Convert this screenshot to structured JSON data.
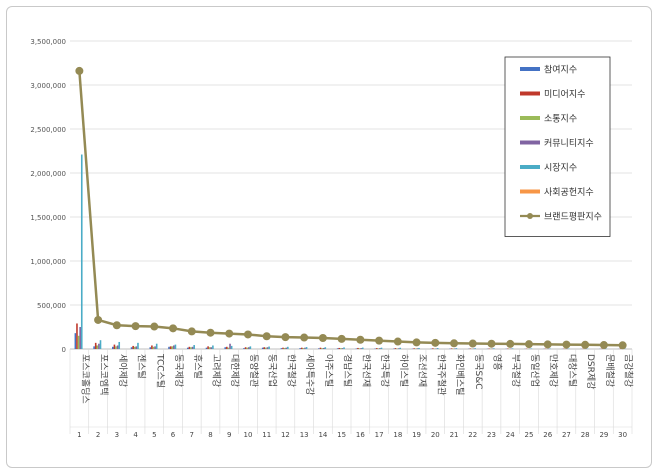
{
  "chart_data": {
    "type": "bar",
    "y_ticks": [
      "3,500,000",
      "3,000,000",
      "2,500,000",
      "2,000,000",
      "1,500,000",
      "1,000,000",
      "500,000",
      "0"
    ],
    "ylim": [
      0,
      3500000
    ],
    "grid": true,
    "legend_position": "top-right",
    "categories": [
      "포스코홀딩스",
      "포스코엠텍",
      "세아제강",
      "젠스틸",
      "TCC스틸",
      "동국제강",
      "휴스틸",
      "고려제강",
      "대한제강",
      "동양철관",
      "동국산업",
      "한국철강",
      "세아특수강",
      "아주스틸",
      "경남스틸",
      "한국선재",
      "한국특강",
      "하이스틸",
      "조선선재",
      "한국주철관",
      "화인베스틸",
      "동국S&C",
      "영흥",
      "부국철강",
      "동일산업",
      "만호제강",
      "대창스틸",
      "DSR제강",
      "문배철강",
      "금강철강"
    ],
    "ranks": [
      "1",
      "2",
      "3",
      "4",
      "5",
      "6",
      "7",
      "8",
      "9",
      "10",
      "11",
      "12",
      "13",
      "14",
      "15",
      "16",
      "17",
      "18",
      "19",
      "20",
      "21",
      "22",
      "23",
      "24",
      "25",
      "26",
      "27",
      "28",
      "29",
      "30"
    ],
    "series": [
      {
        "name": "참여지수",
        "color": "#4472c4",
        "values": [
          180000,
          30000,
          25000,
          20000,
          20000,
          25000,
          15000,
          15000,
          20000,
          10000,
          15000,
          10000,
          10000,
          8000,
          8000,
          6000,
          5000,
          5000,
          4000,
          4000,
          4000,
          3000,
          3000,
          3000,
          2000,
          2000,
          2000,
          2000,
          2000,
          1500
        ]
      },
      {
        "name": "미디어지수",
        "color": "#c0392b",
        "values": [
          290000,
          70000,
          50000,
          35000,
          40000,
          30000,
          25000,
          30000,
          25000,
          20000,
          20000,
          15000,
          15000,
          15000,
          12000,
          12000,
          10000,
          10000,
          8000,
          8000,
          7000,
          6000,
          5000,
          5000,
          4000,
          4000,
          4000,
          3000,
          3000,
          3000
        ]
      },
      {
        "name": "소통지수",
        "color": "#9bbb59",
        "values": [
          150000,
          40000,
          30000,
          25000,
          25000,
          30000,
          20000,
          20000,
          15000,
          15000,
          15000,
          12000,
          10000,
          10000,
          10000,
          8000,
          7000,
          6000,
          6000,
          5000,
          5000,
          4000,
          4000,
          4000,
          3000,
          3000,
          3000,
          3000,
          2000,
          2000
        ]
      },
      {
        "name": "커뮤니티지수",
        "color": "#8064a2",
        "values": [
          250000,
          60000,
          40000,
          30000,
          30000,
          40000,
          25000,
          20000,
          60000,
          20000,
          20000,
          15000,
          15000,
          12000,
          10000,
          10000,
          10000,
          8000,
          8000,
          6000,
          6000,
          5000,
          5000,
          5000,
          4000,
          4000,
          3000,
          3000,
          3000,
          3000
        ]
      },
      {
        "name": "시장지수",
        "color": "#4bacc6",
        "values": [
          2210000,
          100000,
          80000,
          70000,
          60000,
          50000,
          45000,
          40000,
          35000,
          30000,
          28000,
          25000,
          22000,
          20000,
          18000,
          16000,
          15000,
          14000,
          12000,
          11000,
          10000,
          9000,
          8000,
          7000,
          6000,
          5000,
          5000,
          4000,
          4000,
          3000
        ]
      },
      {
        "name": "사회공헌지수",
        "color": "#f79646",
        "values": [
          0,
          0,
          0,
          0,
          0,
          0,
          0,
          0,
          0,
          0,
          0,
          0,
          0,
          0,
          0,
          0,
          0,
          0,
          0,
          0,
          0,
          0,
          0,
          0,
          0,
          0,
          0,
          0,
          0,
          0
        ]
      },
      {
        "name": "브랜드평판지수",
        "color": "#948a54",
        "type": "line",
        "values": [
          3160000,
          330000,
          270000,
          260000,
          255000,
          235000,
          200000,
          185000,
          175000,
          165000,
          145000,
          135000,
          130000,
          125000,
          115000,
          105000,
          95000,
          85000,
          75000,
          70000,
          65000,
          62000,
          60000,
          58000,
          55000,
          52000,
          50000,
          48000,
          45000,
          42000
        ]
      }
    ]
  }
}
